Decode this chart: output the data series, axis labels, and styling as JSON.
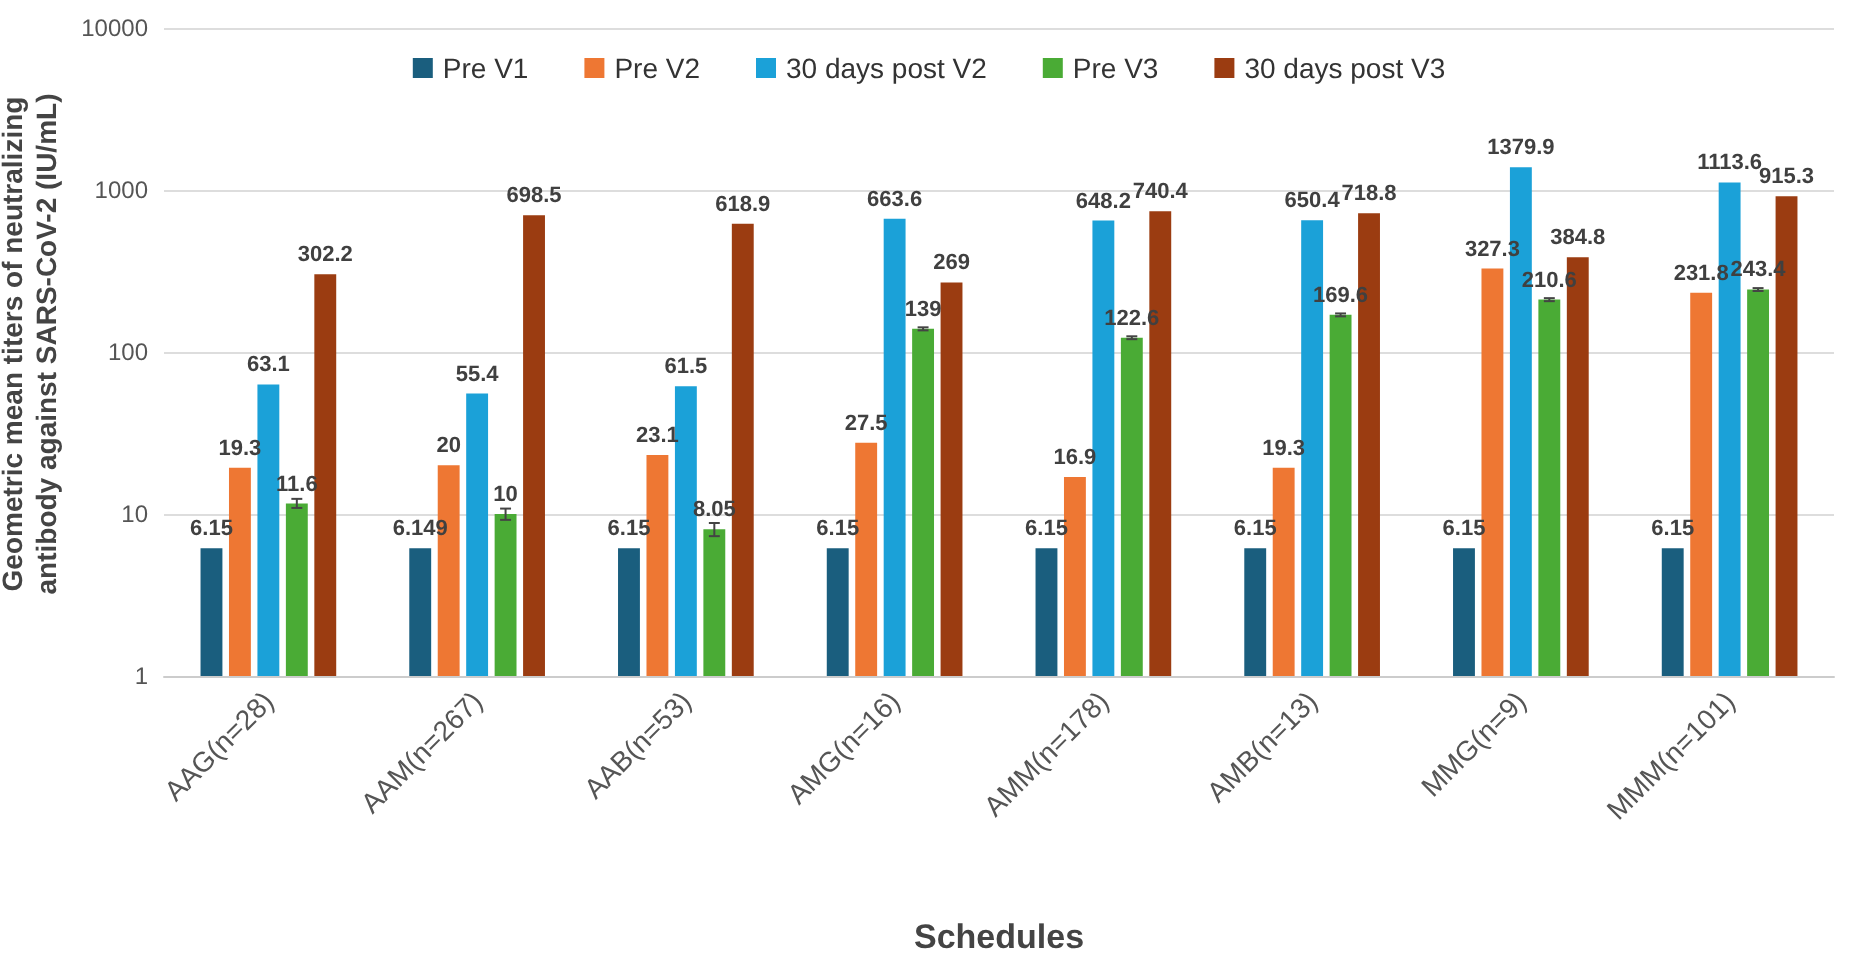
{
  "chart_data": {
    "type": "bar",
    "xlabel": "Schedules",
    "ylabel": "Geometric mean titers of neutralizing antibody against SARS-CoV-2 (IU/mL)",
    "categories": [
      "AAG(n=28)",
      "AAM(n=267)",
      "AAB(n=53)",
      "AMG(n=16)",
      "AMM(n=178)",
      "AMB(n=13)",
      "MMG(n=9)",
      "MMM(n=101)"
    ],
    "series": [
      {
        "name": "Pre V1",
        "color": "#1a5e7e",
        "values": [
          6.15,
          6.149,
          6.15,
          6.15,
          6.15,
          6.15,
          6.15,
          6.15
        ]
      },
      {
        "name": "Pre V2",
        "color": "#ee7733",
        "values": [
          19.3,
          20,
          23.1,
          27.5,
          16.9,
          19.3,
          327.3,
          231.8
        ]
      },
      {
        "name": "30 days post V2",
        "color": "#1ba1d8",
        "values": [
          63.1,
          55.4,
          61.5,
          663.6,
          648.2,
          650.4,
          1379.9,
          1113.6
        ]
      },
      {
        "name": "Pre V3",
        "color": "#4aab35",
        "values": [
          11.6,
          10,
          8.05,
          139,
          122.6,
          169.6,
          210.6,
          243.4
        ],
        "errors": [
          [
            10.9,
            12.4
          ],
          [
            9.2,
            10.8
          ],
          [
            7.3,
            8.8
          ],
          [
            136,
            142
          ],
          [
            120,
            125
          ],
          [
            166,
            173
          ],
          [
            206,
            215
          ],
          [
            238,
            248
          ]
        ]
      },
      {
        "name": "30 days post V3",
        "color": "#9b3c11",
        "values": [
          302.2,
          698.5,
          618.9,
          269,
          740.4,
          718.8,
          384.8,
          915.3
        ]
      }
    ],
    "log": "y",
    "ylim": [
      1,
      10000
    ],
    "yticks": [
      1,
      10,
      100,
      1000,
      10000
    ],
    "grid": "y",
    "legend": "top",
    "data_labels": true
  }
}
